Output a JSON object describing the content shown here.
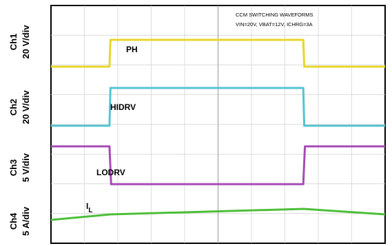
{
  "title_line1": "CCM SWITCHING WAVEFORMS",
  "title_line2": "VIN=20V, VBAT=12V, ICHRG=3A",
  "chart_data": {
    "type": "line",
    "title": "CCM SWITCHING WAVEFORMS",
    "subtitle": "VIN=20V, VBAT=12V, ICHRG=3A",
    "xlim": [
      0,
      10
    ],
    "grid": true,
    "channels": [
      {
        "id": "ch1",
        "label": "Ch1",
        "scale": "20 V/div",
        "trace": "PH",
        "label_sub": "",
        "color": "#e8d62a"
      },
      {
        "id": "ch2",
        "label": "Ch2",
        "scale": "20 V/div",
        "trace": "HIDRV",
        "label_sub": "",
        "color": "#54c4d2"
      },
      {
        "id": "ch3",
        "label": "Ch3",
        "scale": "5 V/div",
        "trace": "LODRV",
        "label_sub": "",
        "color": "#a64bb4"
      },
      {
        "id": "ch4",
        "label": "Ch4",
        "scale": "5 A/div",
        "trace": "I",
        "label_sub": "L",
        "color": "#4cbf38"
      }
    ],
    "series": [
      {
        "name": "PH",
        "x": [
          0,
          1.75,
          1.78,
          7.55,
          7.58,
          10
        ],
        "y": [
          0.0,
          0.0,
          1.0,
          1.0,
          0.0,
          0.0
        ]
      },
      {
        "name": "HIDRV",
        "x": [
          0,
          1.75,
          1.78,
          7.55,
          7.58,
          10
        ],
        "y": [
          0.0,
          0.0,
          1.0,
          1.0,
          0.0,
          0.0
        ]
      },
      {
        "name": "LODRV",
        "x": [
          0,
          1.75,
          1.8,
          7.55,
          7.6,
          10
        ],
        "y": [
          1.0,
          1.0,
          0.0,
          0.0,
          1.0,
          1.0
        ]
      },
      {
        "name": "I",
        "x": [
          0,
          1.78,
          7.56,
          10
        ],
        "y": [
          0.0,
          0.5,
          1.0,
          0.5
        ]
      }
    ]
  }
}
